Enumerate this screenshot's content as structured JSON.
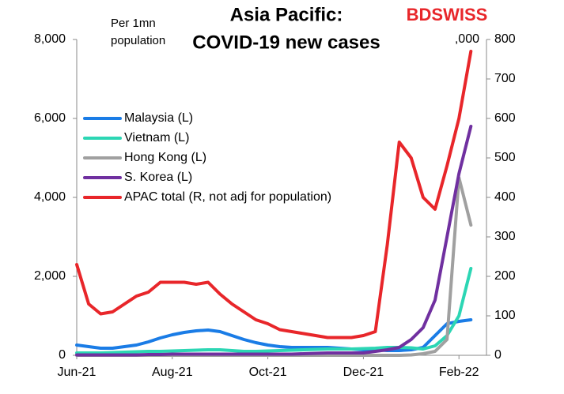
{
  "brand": "BDSWISS",
  "chart_data": {
    "type": "line",
    "title": [
      "Asia Pacific:",
      "COVID-19  new cases"
    ],
    "y_label": [
      "Per 1mn",
      "population"
    ],
    "y2_label": ",000",
    "categories": [
      "Jun-21",
      null,
      null,
      null,
      null,
      null,
      null,
      null,
      "Aug-21",
      null,
      null,
      null,
      null,
      null,
      null,
      null,
      "Oct-21",
      null,
      null,
      null,
      null,
      null,
      null,
      null,
      "Dec-21",
      null,
      null,
      null,
      null,
      null,
      null,
      null,
      "Feb-22",
      null
    ],
    "ylim": [
      0,
      8000
    ],
    "yticks": [
      {
        "value": 0,
        "label": "0"
      },
      {
        "value": 2000,
        "label": "2,000"
      },
      {
        "value": 4000,
        "label": "4,000"
      },
      {
        "value": 6000,
        "label": "6,000"
      },
      {
        "value": 8000,
        "label": "8,000"
      }
    ],
    "y2lim": [
      0,
      800
    ],
    "y2ticks": [
      0,
      100,
      200,
      300,
      400,
      500,
      600,
      700,
      800
    ],
    "legend": "upper left",
    "series": [
      {
        "name": "Malaysia (L)",
        "color": "#1a7ce6",
        "values": [
          260,
          220,
          180,
          180,
          220,
          260,
          340,
          440,
          520,
          580,
          620,
          640,
          600,
          500,
          400,
          320,
          260,
          220,
          200,
          200,
          200,
          200,
          180,
          160,
          140,
          140,
          120,
          120,
          140,
          200,
          500,
          800,
          860,
          900
        ]
      },
      {
        "name": "Vietnam (L)",
        "color": "#2cd6b4",
        "values": [
          60,
          60,
          60,
          70,
          80,
          90,
          100,
          100,
          110,
          120,
          130,
          140,
          140,
          120,
          100,
          100,
          110,
          120,
          130,
          140,
          150,
          160,
          160,
          160,
          170,
          180,
          200,
          200,
          190,
          160,
          240,
          500,
          1000,
          2200
        ]
      },
      {
        "name": "Hong Kong (L)",
        "color": "#a0a0a0",
        "values": [
          0,
          0,
          0,
          0,
          0,
          0,
          0,
          0,
          0,
          0,
          0,
          0,
          0,
          0,
          0,
          0,
          0,
          0,
          0,
          0,
          0,
          0,
          0,
          0,
          0,
          0,
          0,
          0,
          10,
          40,
          100,
          400,
          4500,
          3300
        ]
      },
      {
        "name": "S. Korea (L)",
        "color": "#7030a0",
        "values": [
          10,
          10,
          10,
          10,
          10,
          10,
          20,
          20,
          30,
          30,
          30,
          30,
          30,
          30,
          30,
          30,
          30,
          30,
          30,
          40,
          50,
          60,
          60,
          60,
          60,
          100,
          140,
          200,
          400,
          700,
          1400,
          3000,
          4600,
          5800
        ]
      },
      {
        "name": "APAC total (R, not adj for population)",
        "color": "#e8262a",
        "axis": "y2",
        "values": [
          230,
          130,
          105,
          110,
          130,
          150,
          160,
          185,
          185,
          185,
          180,
          185,
          155,
          130,
          110,
          90,
          80,
          65,
          60,
          55,
          50,
          45,
          45,
          45,
          50,
          60,
          280,
          540,
          500,
          400,
          370,
          480,
          600,
          770
        ]
      }
    ]
  }
}
